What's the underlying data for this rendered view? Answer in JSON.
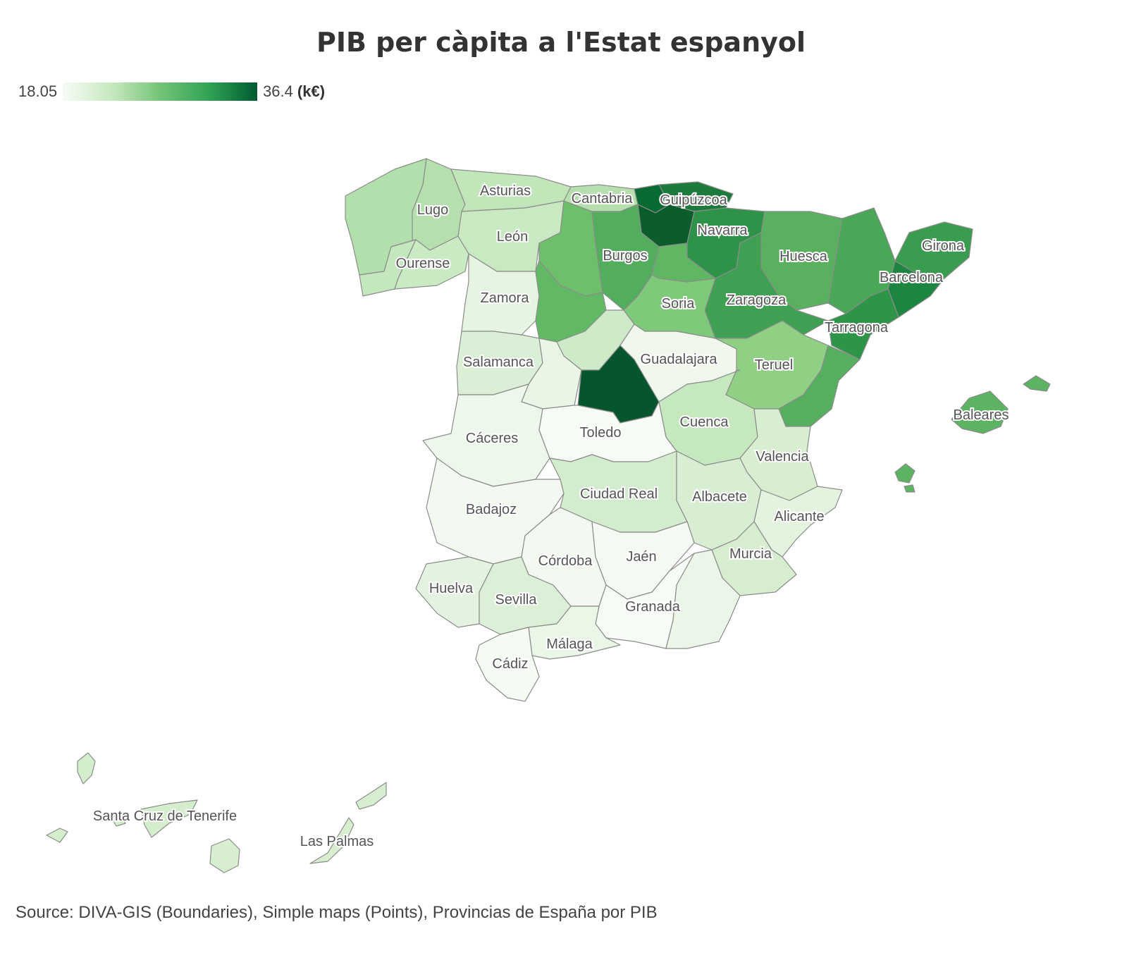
{
  "title": "PIB per càpita a l'Estat espanyol",
  "legend": {
    "min": "18.05",
    "max": "36.4",
    "unit": "(k€)"
  },
  "colors": {
    "low": "#f7fcf5",
    "high": "#005a32"
  },
  "source": "Source: DIVA-GIS (Boundaries), Simple maps (Points), Provincias de España por PIB",
  "labels": {
    "asturias": "Asturias",
    "cantabria": "Cantabria",
    "guipuzcoa": "Guipúzcoa",
    "lugo": "Lugo",
    "leon": "León",
    "ourense": "Ourense",
    "navarra": "Navarra",
    "burgos": "Burgos",
    "huesca": "Huesca",
    "girona": "Girona",
    "barcelona": "Barcelona",
    "zamora": "Zamora",
    "soria": "Soria",
    "zaragoza": "Zaragoza",
    "tarragona": "Tarragona",
    "salamanca": "Salamanca",
    "guadalajara": "Guadalajara",
    "teruel": "Teruel",
    "baleares": "Baleares",
    "cuenca": "Cuenca",
    "caceres": "Cáceres",
    "toledo": "Toledo",
    "valencia": "Valencia",
    "ciudad_real": "Ciudad Real",
    "albacete": "Albacete",
    "badajoz": "Badajoz",
    "alicante": "Alicante",
    "cordoba": "Córdoba",
    "jaen": "Jaén",
    "murcia": "Murcia",
    "huelva": "Huelva",
    "sevilla": "Sevilla",
    "granada": "Granada",
    "malaga": "Málaga",
    "cadiz": "Cádiz",
    "tenerife": "Santa Cruz de Tenerife",
    "las_palmas": "Las Palmas"
  }
}
